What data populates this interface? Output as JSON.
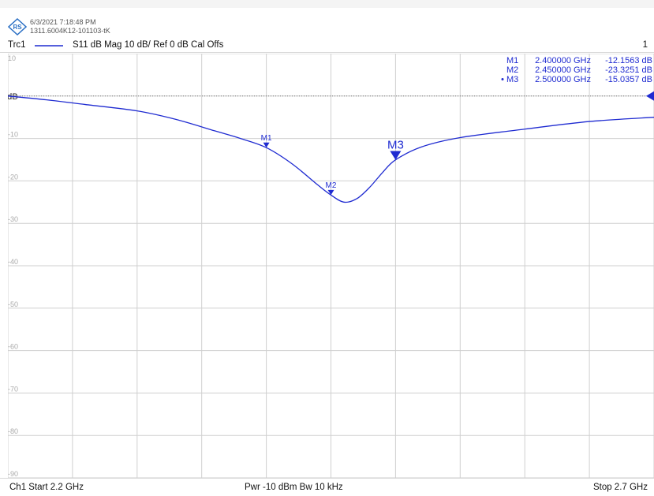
{
  "header": {
    "timestamp": "6/3/2021 7:18:48 PM",
    "device_id": "1311.6004K12-101103-tK"
  },
  "trace_bar": {
    "trace_name": "Trc1",
    "trace_desc": "S11  dB Mag  10 dB/ Ref 0 dB  Cal Offs",
    "channel_number": "1"
  },
  "footer": {
    "start": "Ch1  Start  2.2 GHz",
    "power_bw": "Pwr  -10 dBm  Bw  10 kHz",
    "stop": "Stop  2.7 GHz"
  },
  "colors": {
    "trace": "#1f2bd1",
    "grid": "#cfcfcf",
    "tick_text": "#aaaaaa",
    "ref_line": "#777777"
  },
  "chart_data": {
    "type": "line",
    "title": "",
    "xlabel": "",
    "ylabel": "",
    "xlim": [
      2.2,
      2.7
    ],
    "ylim": [
      -90,
      10
    ],
    "x_unit": "GHz",
    "y_unit": "dB",
    "grid": true,
    "ref_label": "0 dB",
    "ytick_labels": [
      "10",
      "0 dB",
      "-10",
      "-20",
      "-30",
      "-40",
      "-50",
      "-60",
      "-70",
      "-80",
      "-90"
    ],
    "ytick_values": [
      10,
      0,
      -10,
      -20,
      -30,
      -40,
      -50,
      -60,
      -70,
      -80,
      -90
    ],
    "series": [
      {
        "name": "Trc1",
        "x": [
          2.2,
          2.23,
          2.26,
          2.3,
          2.33,
          2.36,
          2.38,
          2.4,
          2.42,
          2.44,
          2.45,
          2.46,
          2.47,
          2.48,
          2.49,
          2.5,
          2.52,
          2.55,
          2.6,
          2.65,
          2.7
        ],
        "y": [
          0,
          -0.9,
          -2.0,
          -3.5,
          -5.5,
          -8.2,
          -10.0,
          -12.16,
          -16.0,
          -21.0,
          -23.33,
          -25.0,
          -24.2,
          -21.5,
          -18.0,
          -15.04,
          -12.0,
          -9.8,
          -7.8,
          -6.0,
          -5.0
        ]
      }
    ],
    "markers": [
      {
        "name": "M1",
        "freq": "2.400000 GHz",
        "value": "-12.1563 dB",
        "x": 2.4,
        "y": -12.1563,
        "active": false
      },
      {
        "name": "M2",
        "freq": "2.450000 GHz",
        "value": "-23.3251 dB",
        "x": 2.45,
        "y": -23.3251,
        "active": false
      },
      {
        "name": "M3",
        "freq": "2.500000 GHz",
        "value": "-15.0357 dB",
        "x": 2.5,
        "y": -15.0357,
        "active": true
      }
    ]
  }
}
